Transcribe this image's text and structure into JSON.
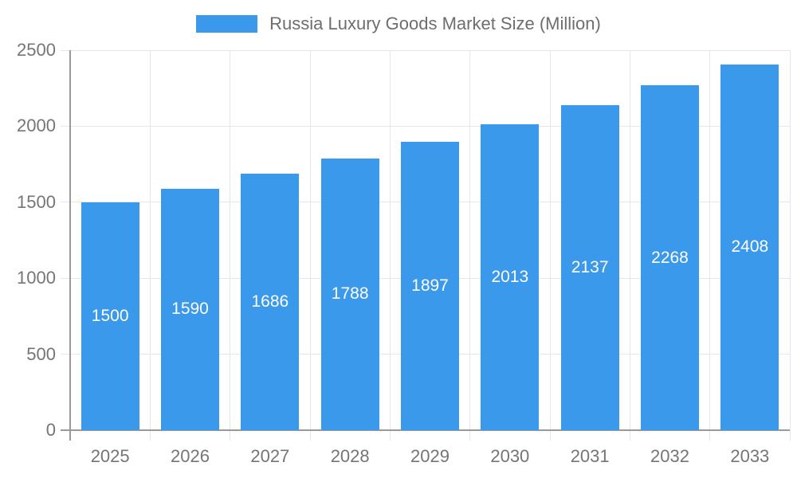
{
  "legend": {
    "label": "Russia Luxury Goods Market Size (Million)",
    "swatch_color": "#3b99ec"
  },
  "chart_data": {
    "type": "bar",
    "title": "Russia Luxury Goods Market Size (Million)",
    "series_name": "Russia Luxury Goods Market Size (Million)",
    "categories": [
      "2025",
      "2026",
      "2027",
      "2028",
      "2029",
      "2030",
      "2031",
      "2032",
      "2033"
    ],
    "values": [
      1500,
      1590,
      1686,
      1788,
      1897,
      2013,
      2137,
      2268,
      2408
    ],
    "xlabel": "",
    "ylabel": "",
    "ylim": [
      0,
      2500
    ],
    "y_ticks": [
      0,
      500,
      1000,
      1500,
      2000,
      2500
    ],
    "grid": true,
    "legend_position": "top",
    "bar_color": "#3b99ec",
    "bar_label_color": "#ffffff",
    "grid_color": "#e6e6e6",
    "axis_color": "#999999",
    "tick_label_color": "#757575"
  }
}
